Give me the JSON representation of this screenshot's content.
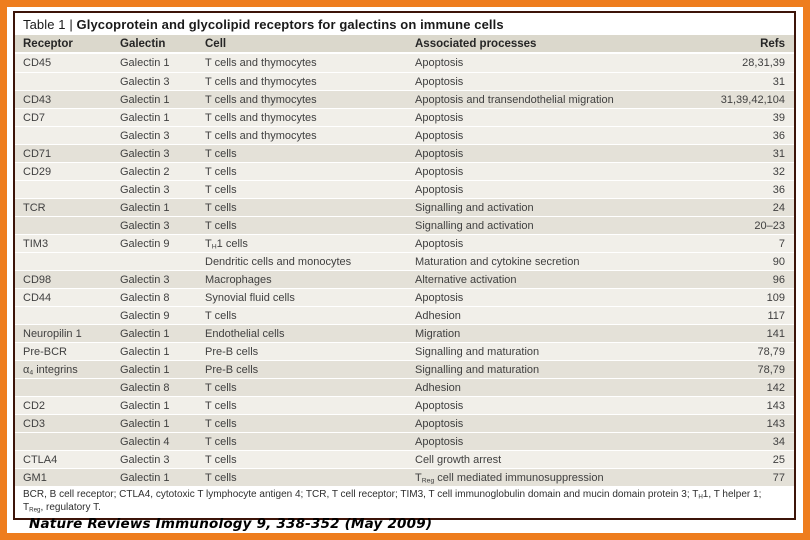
{
  "title": {
    "prefix": "Table 1 | ",
    "text": "Glycoprotein and glycolipid receptors for galectins on immune cells"
  },
  "table": {
    "columns": [
      "Receptor",
      "Galectin",
      "Cell",
      "Associated processes",
      "Refs"
    ],
    "rows": [
      {
        "receptor": "CD45",
        "galectin": "Galectin 1",
        "cell": "T cells and thymocytes",
        "process": "Apoptosis",
        "refs": "28,31,39"
      },
      {
        "receptor": "",
        "galectin": "Galectin 3",
        "cell": "T cells and thymocytes",
        "process": "Apoptosis",
        "refs": "31"
      },
      {
        "receptor": "CD43",
        "galectin": "Galectin 1",
        "cell": "T cells and thymocytes",
        "process": "Apoptosis and transendothelial migration",
        "refs": "31,39,42,104"
      },
      {
        "receptor": "CD7",
        "galectin": "Galectin 1",
        "cell": "T cells and thymocytes",
        "process": "Apoptosis",
        "refs": "39"
      },
      {
        "receptor": "",
        "galectin": "Galectin 3",
        "cell": "T cells and thymocytes",
        "process": "Apoptosis",
        "refs": "36"
      },
      {
        "receptor": "CD71",
        "galectin": "Galectin 3",
        "cell": "T cells",
        "process": "Apoptosis",
        "refs": "31"
      },
      {
        "receptor": "CD29",
        "galectin": "Galectin 2",
        "cell": "T cells",
        "process": "Apoptosis",
        "refs": "32"
      },
      {
        "receptor": "",
        "galectin": "Galectin 3",
        "cell": "T cells",
        "process": "Apoptosis",
        "refs": "36"
      },
      {
        "receptor": "TCR",
        "galectin": "Galectin 1",
        "cell": "T cells",
        "process": "Signalling and activation",
        "refs": "24"
      },
      {
        "receptor": "",
        "galectin": "Galectin 3",
        "cell": "T cells",
        "process": "Signalling and activation",
        "refs": "20–23"
      },
      {
        "receptor": "TIM3",
        "galectin": "Galectin 9",
        "cell": "T~H~1 cells",
        "process": "Apoptosis",
        "refs": "7"
      },
      {
        "receptor": "",
        "galectin": "",
        "cell": "Dendritic cells and monocytes",
        "process": "Maturation and cytokine secretion",
        "refs": "90"
      },
      {
        "receptor": "CD98",
        "galectin": "Galectin 3",
        "cell": "Macrophages",
        "process": "Alternative activation",
        "refs": "96"
      },
      {
        "receptor": "CD44",
        "galectin": "Galectin 8",
        "cell": "Synovial fluid cells",
        "process": "Apoptosis",
        "refs": "109"
      },
      {
        "receptor": "",
        "galectin": "Galectin 9",
        "cell": "T cells",
        "process": "Adhesion",
        "refs": "117"
      },
      {
        "receptor": "Neuropilin 1",
        "galectin": "Galectin 1",
        "cell": "Endothelial cells",
        "process": "Migration",
        "refs": "141"
      },
      {
        "receptor": "Pre-BCR",
        "galectin": "Galectin 1",
        "cell": "Pre-B cells",
        "process": "Signalling and maturation",
        "refs": "78,79"
      },
      {
        "receptor": "α~4~ integrins",
        "galectin": "Galectin 1",
        "cell": "Pre-B cells",
        "process": "Signalling and maturation",
        "refs": "78,79"
      },
      {
        "receptor": "",
        "galectin": "Galectin 8",
        "cell": "T cells",
        "process": "Adhesion",
        "refs": "142"
      },
      {
        "receptor": "CD2",
        "galectin": "Galectin 1",
        "cell": "T cells",
        "process": "Apoptosis",
        "refs": "143"
      },
      {
        "receptor": "CD3",
        "galectin": "Galectin 1",
        "cell": "T cells",
        "process": "Apoptosis",
        "refs": "143"
      },
      {
        "receptor": "",
        "galectin": "Galectin 4",
        "cell": "T cells",
        "process": "Apoptosis",
        "refs": "34"
      },
      {
        "receptor": "CTLA4",
        "galectin": "Galectin 3",
        "cell": "T cells",
        "process": "Cell growth arrest",
        "refs": "25"
      },
      {
        "receptor": "GM1",
        "galectin": "Galectin 1",
        "cell": "T cells",
        "process": "T~Reg~ cell mediated immunosuppression",
        "refs": "77"
      }
    ]
  },
  "footnote": "BCR, B cell receptor; CTLA4, cytotoxic T lymphocyte antigen 4; TCR, T cell receptor; TIM3, T cell immunoglobulin domain and mucin domain protein 3; T~H~1, T helper 1; T~Reg~, regulatory T.",
  "citation": "Nature Reviews Immunology 9, 338-352 (May 2009)",
  "colors": {
    "frame_accent": "#EE7D1E",
    "box_border": "#3C1409",
    "header_bg": "#DBD8CC",
    "row_light": "#F1EFE9",
    "row_dark": "#E4E1D8",
    "text": "#3F3F3F"
  }
}
